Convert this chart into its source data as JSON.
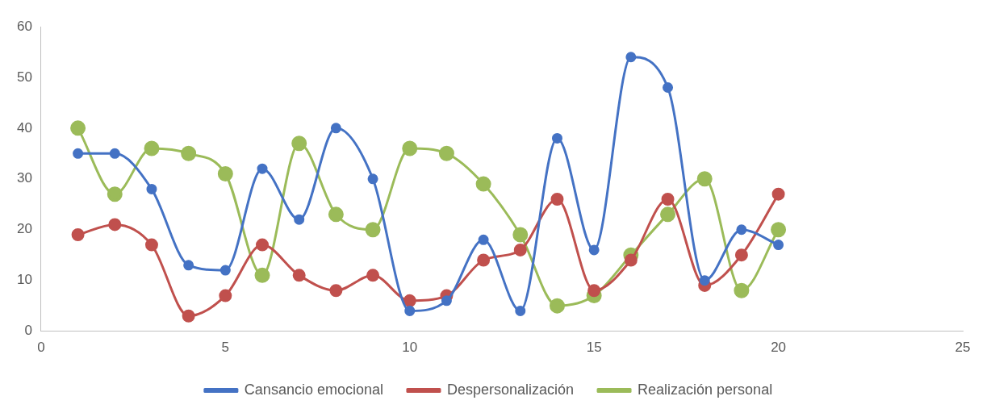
{
  "chart_data": {
    "type": "line",
    "x": [
      1,
      2,
      3,
      4,
      5,
      6,
      7,
      8,
      9,
      10,
      11,
      12,
      13,
      14,
      15,
      16,
      17,
      18,
      19,
      20
    ],
    "series": [
      {
        "name": "Cansancio emocional",
        "color": "#4472c4",
        "values": [
          35,
          35,
          28,
          13,
          12,
          32,
          22,
          40,
          30,
          4,
          6,
          18,
          4,
          38,
          16,
          54,
          48,
          10,
          20,
          17
        ]
      },
      {
        "name": "Despersonalización",
        "color": "#c0504d",
        "values": [
          19,
          21,
          17,
          3,
          7,
          17,
          11,
          8,
          11,
          6,
          7,
          14,
          16,
          26,
          8,
          14,
          26,
          9,
          15,
          27
        ]
      },
      {
        "name": "Realización personal",
        "color": "#9bbb59",
        "values": [
          40,
          27,
          36,
          35,
          31,
          11,
          37,
          23,
          20,
          36,
          35,
          29,
          19,
          5,
          7,
          15,
          23,
          30,
          8,
          20
        ]
      }
    ],
    "xlim": [
      0,
      25
    ],
    "xticks": [
      0,
      5,
      10,
      15,
      20,
      25
    ],
    "ylim": [
      0,
      60
    ],
    "yticks": [
      0,
      10,
      20,
      30,
      40,
      50,
      60
    ],
    "grid": false,
    "legend": "bottom",
    "marker": "circle",
    "line_style": "solid"
  }
}
